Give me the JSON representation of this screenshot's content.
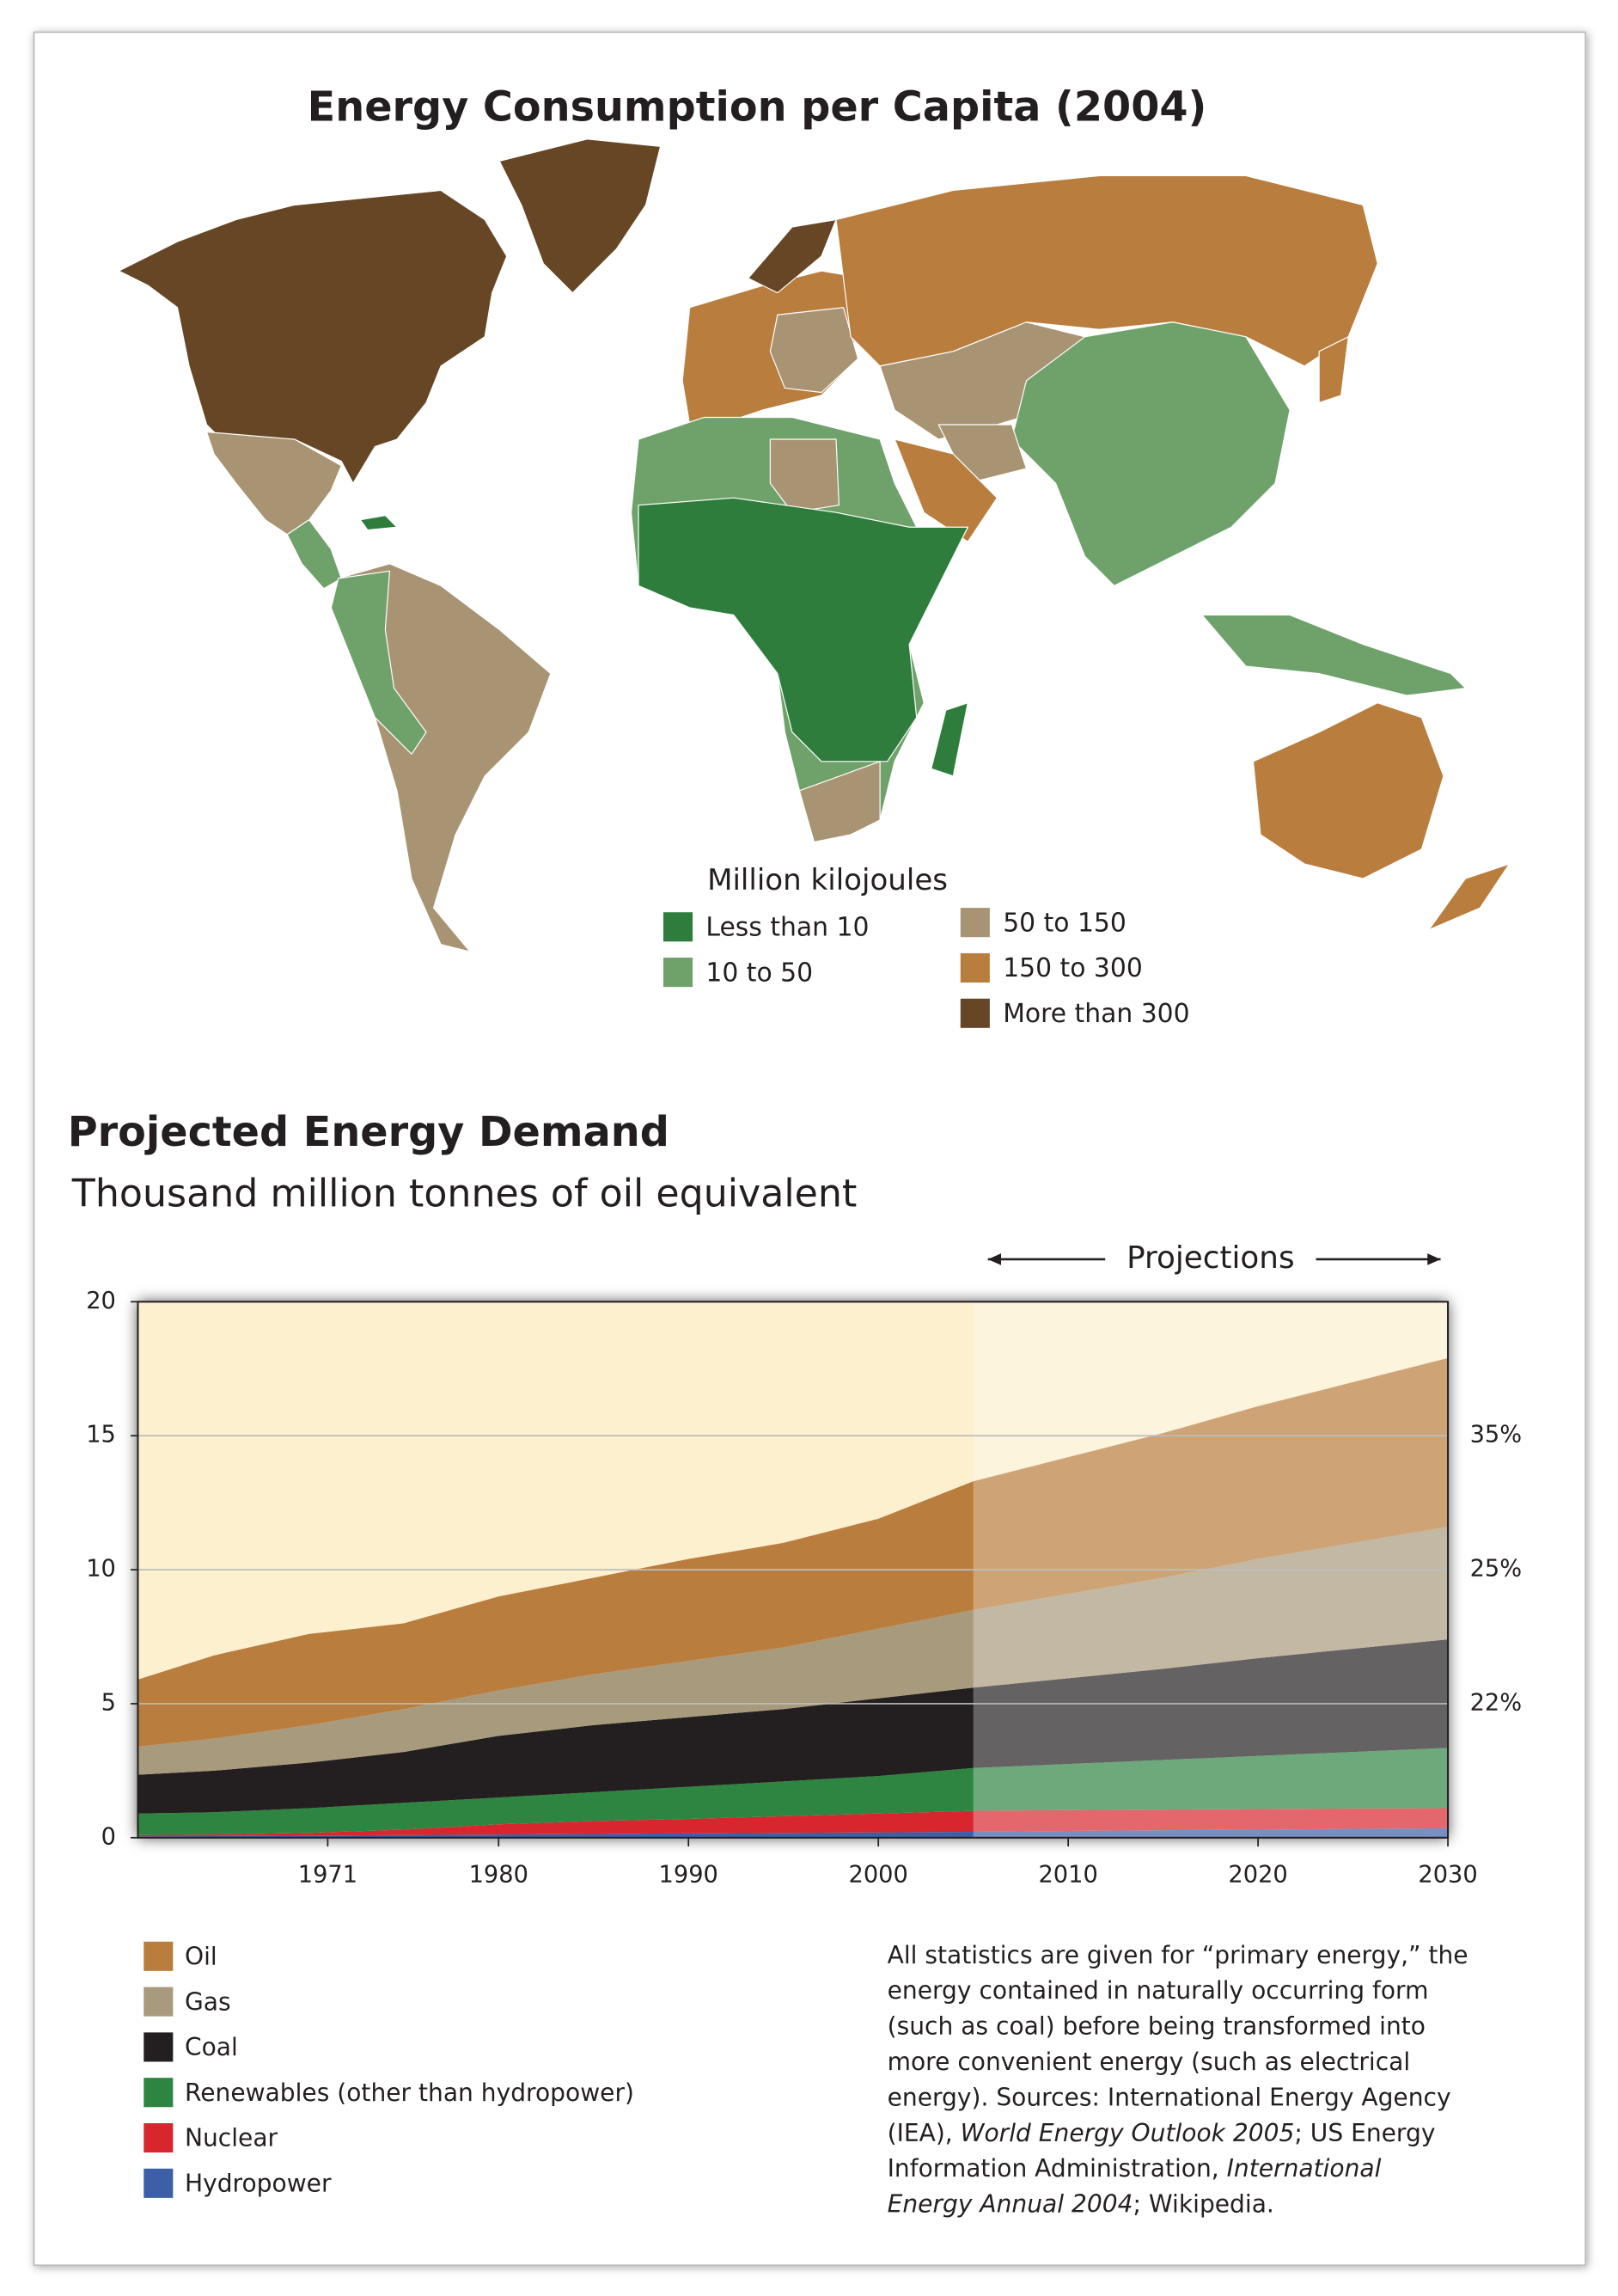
{
  "map": {
    "title": "Energy Consumption per Capita (2004)",
    "legend_title": "Million kilojoules",
    "legend": [
      {
        "label": "Less than 10",
        "color": "#2e7d3c"
      },
      {
        "label": "10 to 50",
        "color": "#6fa16b"
      },
      {
        "label": "50 to 150",
        "color": "#a89373"
      },
      {
        "label": "150 to 300",
        "color": "#b97d3d"
      },
      {
        "label": "More than 300",
        "color": "#664624"
      }
    ]
  },
  "chart_data": {
    "type": "stacked_area",
    "title": "Projected Energy Demand",
    "subtitle": "Thousand million tonnes of oil equivalent",
    "x": [
      1961,
      1965,
      1970,
      1975,
      1980,
      1985,
      1990,
      1995,
      2000,
      2005,
      2010,
      2015,
      2020,
      2025,
      2030
    ],
    "series": [
      {
        "name": "Oil",
        "color": "#b97d3d",
        "values": [
          2.5,
          3.1,
          3.4,
          3.2,
          3.5,
          3.6,
          3.8,
          3.9,
          4.1,
          4.8,
          5.1,
          5.4,
          5.7,
          6.0,
          6.3
        ]
      },
      {
        "name": "Gas",
        "color": "#a89a7c",
        "values": [
          1.05,
          1.2,
          1.4,
          1.6,
          1.7,
          1.9,
          2.1,
          2.3,
          2.6,
          2.9,
          3.15,
          3.4,
          3.7,
          3.95,
          4.2
        ]
      },
      {
        "name": "Coal",
        "color": "#231f20",
        "values": [
          1.45,
          1.55,
          1.7,
          1.9,
          2.3,
          2.5,
          2.6,
          2.7,
          2.9,
          3.0,
          3.2,
          3.4,
          3.65,
          3.85,
          4.05
        ]
      },
      {
        "name": "Renewables (other than hydropower)",
        "color": "#2e8542",
        "values": [
          0.8,
          0.83,
          0.92,
          1.0,
          1.0,
          1.08,
          1.2,
          1.3,
          1.4,
          1.6,
          1.72,
          1.85,
          1.98,
          2.11,
          2.25
        ]
      },
      {
        "name": "Nuclear",
        "color": "#d7262e",
        "values": [
          0.05,
          0.06,
          0.1,
          0.2,
          0.38,
          0.48,
          0.54,
          0.62,
          0.7,
          0.78,
          0.78,
          0.77,
          0.77,
          0.76,
          0.75
        ]
      },
      {
        "name": "Hydropower",
        "color": "#3d5fa8",
        "values": [
          0.05,
          0.06,
          0.08,
          0.1,
          0.12,
          0.14,
          0.16,
          0.18,
          0.2,
          0.22,
          0.25,
          0.28,
          0.3,
          0.33,
          0.35
        ]
      }
    ],
    "xlim": [
      1961,
      2030
    ],
    "xticks": [
      1971,
      1980,
      1990,
      2000,
      2010,
      2020,
      2030
    ],
    "ylim": [
      0,
      20
    ],
    "yticks": [
      0,
      5,
      10,
      15,
      20
    ],
    "grid": true,
    "projection_label": "Projections",
    "projection_start": 2005,
    "annotations": [
      {
        "label": "35%",
        "y": 15
      },
      {
        "label": "25%",
        "y": 10
      },
      {
        "label": "22%",
        "y": 5
      }
    ]
  },
  "note": [
    [
      {
        "text": "All statistics are given for “primary energy,” the"
      }
    ],
    [
      {
        "text": "energy contained in naturally occurring form"
      }
    ],
    [
      {
        "text": "(such as coal) before being transformed into"
      }
    ],
    [
      {
        "text": "more convenient energy (such as electrical"
      }
    ],
    [
      {
        "text": "energy). Sources: International Energy Agency"
      }
    ],
    [
      {
        "text": "(IEA), "
      },
      {
        "text": "World Energy Outlook 2005",
        "italic": true
      },
      {
        "text": "; US Energy"
      }
    ],
    [
      {
        "text": "Information Administration, "
      },
      {
        "text": "International",
        "italic": true
      }
    ],
    [
      {
        "text": "Energy Annual 2004",
        "italic": true
      },
      {
        "text": "; Wikipedia."
      }
    ]
  ]
}
